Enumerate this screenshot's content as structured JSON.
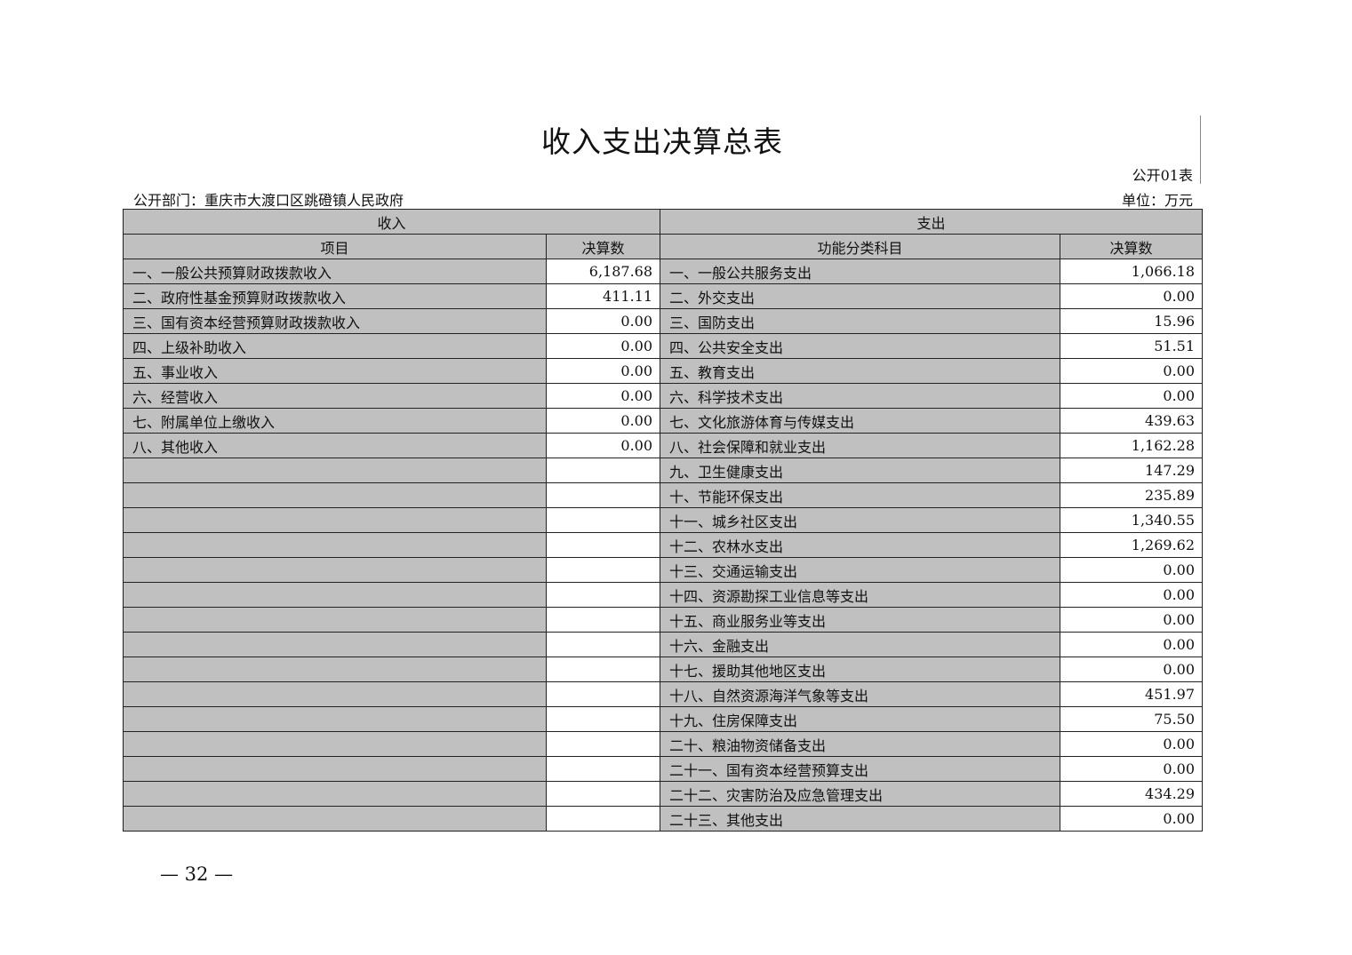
{
  "title": "收入支出决算总表",
  "table_no": "公开01表",
  "department": "公开部门：重庆市大渡口区跳磴镇人民政府",
  "unit": "单位：万元",
  "header": {
    "income": "收入",
    "expense": "支出",
    "income_item": "项目",
    "income_amount": "决算数",
    "expense_item": "功能分类科目",
    "expense_amount": "决算数"
  },
  "rows": [
    {
      "income_item": "一、一般公共预算财政拨款收入",
      "income_amount": "6,187.68",
      "expense_item": "一、一般公共服务支出",
      "expense_amount": "1,066.18"
    },
    {
      "income_item": "二、政府性基金预算财政拨款收入",
      "income_amount": "411.11",
      "expense_item": "二、外交支出",
      "expense_amount": "0.00"
    },
    {
      "income_item": "三、国有资本经营预算财政拨款收入",
      "income_amount": "0.00",
      "expense_item": "三、国防支出",
      "expense_amount": "15.96"
    },
    {
      "income_item": "四、上级补助收入",
      "income_amount": "0.00",
      "expense_item": "四、公共安全支出",
      "expense_amount": "51.51"
    },
    {
      "income_item": "五、事业收入",
      "income_amount": "0.00",
      "expense_item": "五、教育支出",
      "expense_amount": "0.00"
    },
    {
      "income_item": "六、经营收入",
      "income_amount": "0.00",
      "expense_item": "六、科学技术支出",
      "expense_amount": "0.00"
    },
    {
      "income_item": "七、附属单位上缴收入",
      "income_amount": "0.00",
      "expense_item": "七、文化旅游体育与传媒支出",
      "expense_amount": "439.63"
    },
    {
      "income_item": "八、其他收入",
      "income_amount": "0.00",
      "expense_item": "八、社会保障和就业支出",
      "expense_amount": "1,162.28"
    },
    {
      "income_item": "",
      "income_amount": "",
      "expense_item": "九、卫生健康支出",
      "expense_amount": "147.29"
    },
    {
      "income_item": "",
      "income_amount": "",
      "expense_item": "十、节能环保支出",
      "expense_amount": "235.89"
    },
    {
      "income_item": "",
      "income_amount": "",
      "expense_item": "十一、城乡社区支出",
      "expense_amount": "1,340.55"
    },
    {
      "income_item": "",
      "income_amount": "",
      "expense_item": "十二、农林水支出",
      "expense_amount": "1,269.62"
    },
    {
      "income_item": "",
      "income_amount": "",
      "expense_item": "十三、交通运输支出",
      "expense_amount": "0.00"
    },
    {
      "income_item": "",
      "income_amount": "",
      "expense_item": "十四、资源勘探工业信息等支出",
      "expense_amount": "0.00"
    },
    {
      "income_item": "",
      "income_amount": "",
      "expense_item": "十五、商业服务业等支出",
      "expense_amount": "0.00"
    },
    {
      "income_item": "",
      "income_amount": "",
      "expense_item": "十六、金融支出",
      "expense_amount": "0.00"
    },
    {
      "income_item": "",
      "income_amount": "",
      "expense_item": "十七、援助其他地区支出",
      "expense_amount": "0.00"
    },
    {
      "income_item": "",
      "income_amount": "",
      "expense_item": "十八、自然资源海洋气象等支出",
      "expense_amount": "451.97"
    },
    {
      "income_item": "",
      "income_amount": "",
      "expense_item": "十九、住房保障支出",
      "expense_amount": "75.50"
    },
    {
      "income_item": "",
      "income_amount": "",
      "expense_item": "二十、粮油物资储备支出",
      "expense_amount": "0.00"
    },
    {
      "income_item": "",
      "income_amount": "",
      "expense_item": "二十一、国有资本经营预算支出",
      "expense_amount": "0.00"
    },
    {
      "income_item": "",
      "income_amount": "",
      "expense_item": "二十二、灾害防治及应急管理支出",
      "expense_amount": "434.29"
    },
    {
      "income_item": "",
      "income_amount": "",
      "expense_item": "二十三、其他支出",
      "expense_amount": "0.00"
    }
  ],
  "page_number": "— 32 —",
  "colors": {
    "label_cell": "#c0c0c0",
    "value_cell": "#ffffff",
    "border": "#222222"
  }
}
